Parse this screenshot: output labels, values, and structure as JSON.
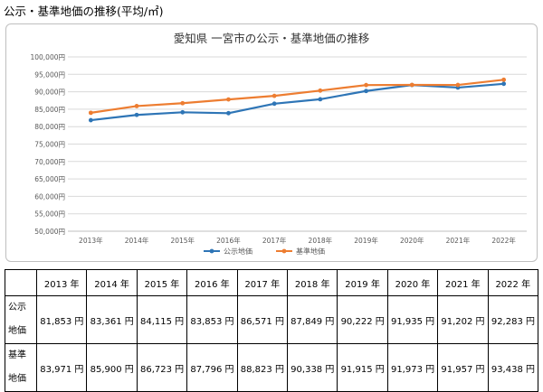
{
  "page_title": "公示・基準地価の推移(平均/㎡)",
  "chart_data": {
    "type": "line",
    "title": "愛知県 一宮市の公示・基準地価の推移",
    "categories": [
      "2013年",
      "2014年",
      "2015年",
      "2016年",
      "2017年",
      "2018年",
      "2019年",
      "2020年",
      "2021年",
      "2022年"
    ],
    "y_ticks": [
      "50,000円",
      "55,000円",
      "60,000円",
      "65,000円",
      "70,000円",
      "75,000円",
      "80,000円",
      "85,000円",
      "90,000円",
      "95,000円",
      "100,000円"
    ],
    "ylim": [
      50000,
      100000
    ],
    "grid": true,
    "legend_position": "bottom",
    "series": [
      {
        "name": "公示地価",
        "color": "#2e75b6",
        "values": [
          81853,
          83361,
          84115,
          83853,
          86571,
          87849,
          90222,
          91935,
          91202,
          92283
        ]
      },
      {
        "name": "基準地価",
        "color": "#ed7d31",
        "values": [
          83971,
          85900,
          86723,
          87796,
          88823,
          90338,
          91915,
          91973,
          91957,
          93438
        ]
      }
    ]
  },
  "table": {
    "headers": [
      "2013 年",
      "2014 年",
      "2015 年",
      "2016 年",
      "2017 年",
      "2018 年",
      "2019 年",
      "2020 年",
      "2021 年",
      "2022 年"
    ],
    "rows": [
      {
        "label_top": "公示",
        "label_bottom": "地価",
        "cells": [
          "81,853 円",
          "83,361 円",
          "84,115 円",
          "83,853 円",
          "86,571 円",
          "87,849 円",
          "90,222 円",
          "91,935 円",
          "91,202 円",
          "92,283 円"
        ]
      },
      {
        "label_top": "基準",
        "label_bottom": "地価",
        "cells": [
          "83,971 円",
          "85,900 円",
          "86,723 円",
          "87,796 円",
          "88,823 円",
          "90,338 円",
          "91,915 円",
          "91,973 円",
          "91,957 円",
          "93,438 円"
        ]
      }
    ]
  }
}
